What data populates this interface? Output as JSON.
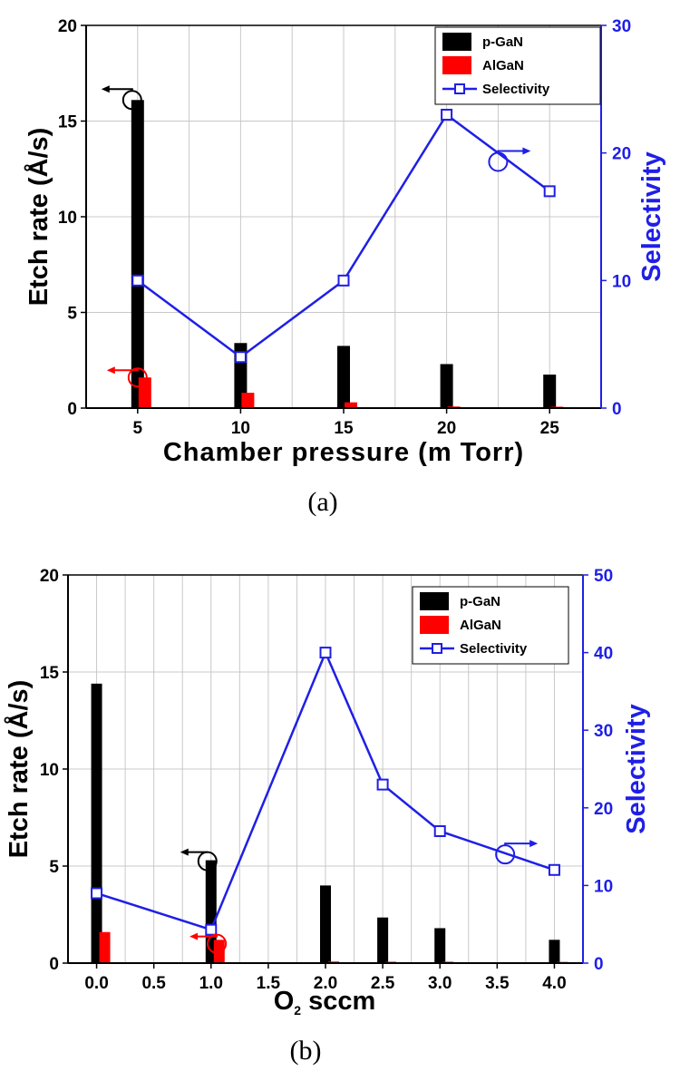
{
  "colors": {
    "pgan": "#000000",
    "algan": "#ff0000",
    "selectivity": "#1f1fe6",
    "grid": "#c8c8c8"
  },
  "chart_data": [
    {
      "type": "bar",
      "panel_label": "(a)",
      "xlabel": "Chamber pressure (m Torr)",
      "ylabel": "Etch rate (Å/s)",
      "y2label": "Selectivity",
      "xlim": [
        2.5,
        27.5
      ],
      "ylim": [
        0,
        20
      ],
      "y2lim": [
        0,
        30
      ],
      "xticks": [
        5,
        10,
        15,
        20,
        25
      ],
      "xtick_labels": [
        "5",
        "10",
        "15",
        "20",
        "25"
      ],
      "yticks": [
        0,
        5,
        10,
        15,
        20
      ],
      "y2ticks": [
        0,
        10,
        20,
        30
      ],
      "grid": true,
      "legend_position": "top-right",
      "series": [
        {
          "name": "p-GaN",
          "kind": "bar",
          "axis": "left",
          "x": [
            5,
            10,
            15,
            20,
            25
          ],
          "values": [
            16.1,
            3.4,
            3.25,
            2.3,
            1.75
          ]
        },
        {
          "name": "AlGaN",
          "kind": "bar",
          "axis": "left",
          "x": [
            5,
            10,
            15,
            20,
            25
          ],
          "values": [
            1.6,
            0.8,
            0.3,
            0.08,
            0.07
          ]
        },
        {
          "name": "Selectivity",
          "kind": "line",
          "axis": "right",
          "x": [
            5,
            10,
            15,
            20,
            25
          ],
          "values": [
            10,
            4,
            10,
            23,
            17
          ]
        }
      ],
      "annotations": [
        {
          "target": "p-GaN",
          "points_to": "left",
          "x": 5,
          "y": 16.1,
          "axis": "left"
        },
        {
          "target": "AlGaN",
          "points_to": "left",
          "x": 5,
          "y": 1.6,
          "axis": "left"
        },
        {
          "target": "Selectivity",
          "points_to": "right",
          "x": 22.5,
          "y": 19.3,
          "axis": "right"
        }
      ]
    },
    {
      "type": "bar",
      "panel_label": "(b)",
      "xlabel_main": "O",
      "xlabel_sub": "2",
      "xlabel_rest": " sccm",
      "ylabel": "Etch rate (Å/s)",
      "y2label": "Selectivity",
      "xlim": [
        -0.25,
        4.25
      ],
      "ylim": [
        0,
        20
      ],
      "y2lim": [
        0,
        50
      ],
      "xticks": [
        0,
        0.5,
        1,
        1.5,
        2,
        2.5,
        3,
        3.5,
        4
      ],
      "xtick_labels": [
        "0.0",
        "0.5",
        "1.0",
        "1.5",
        "2.0",
        "2.5",
        "3.0",
        "3.5",
        "4.0"
      ],
      "yticks": [
        0,
        5,
        10,
        15,
        20
      ],
      "y2ticks": [
        0,
        10,
        20,
        30,
        40,
        50
      ],
      "grid": true,
      "legend_position": "top-right",
      "series": [
        {
          "name": "p-GaN",
          "kind": "bar",
          "axis": "left",
          "x": [
            0,
            1,
            2,
            2.5,
            3,
            4
          ],
          "values": [
            14.4,
            5.3,
            4.0,
            2.35,
            1.8,
            1.2
          ]
        },
        {
          "name": "AlGaN",
          "kind": "bar",
          "axis": "left",
          "x": [
            0,
            1,
            2,
            2.5,
            3,
            4
          ],
          "values": [
            1.6,
            1.2,
            0.08,
            0.07,
            0.07,
            0.06
          ]
        },
        {
          "name": "Selectivity",
          "kind": "line",
          "axis": "right",
          "x": [
            0,
            1,
            2,
            2.5,
            3,
            4
          ],
          "values": [
            9,
            4.3,
            40,
            23,
            17,
            12
          ]
        }
      ],
      "annotations": [
        {
          "target": "p-GaN",
          "points_to": "left",
          "x": 1,
          "y": 5.25,
          "axis": "left"
        },
        {
          "target": "AlGaN",
          "points_to": "left",
          "x": 1.05,
          "y": 1.0,
          "axis": "left"
        },
        {
          "target": "Selectivity",
          "points_to": "right",
          "x": 3.57,
          "y": 14,
          "axis": "right"
        }
      ]
    }
  ]
}
